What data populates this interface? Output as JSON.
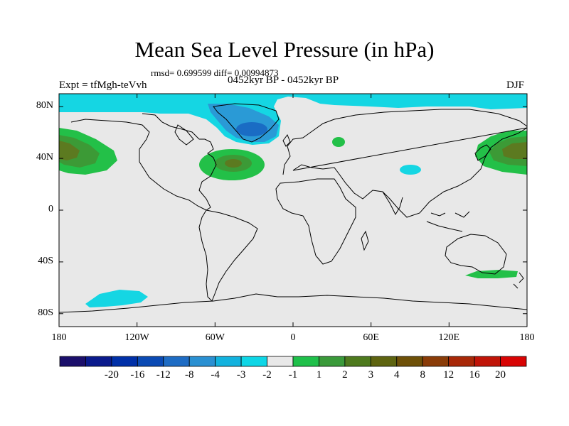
{
  "title": "Mean Sea Level Pressure (in hPa)",
  "stats": "rmsd= 0.699599 diff= 0.00994873",
  "subtitle": "0452kyr BP - 0452kyr BP",
  "experiment": "Expt = tfMgh-teVvh",
  "season": "DJF",
  "map": {
    "lon_range": [
      -180,
      180
    ],
    "lat_range": [
      -90,
      90
    ],
    "background_color": "#e8e8e8",
    "lat_ticks": [
      {
        "value": 80,
        "label": "80N"
      },
      {
        "value": 40,
        "label": "40N"
      },
      {
        "value": 0,
        "label": "0"
      },
      {
        "value": -40,
        "label": "40S"
      },
      {
        "value": -80,
        "label": "80S"
      }
    ],
    "lon_ticks": [
      {
        "value": -180,
        "label": "180"
      },
      {
        "value": -120,
        "label": "120W"
      },
      {
        "value": -60,
        "label": "60W"
      },
      {
        "value": 0,
        "label": "0"
      },
      {
        "value": 60,
        "label": "60E"
      },
      {
        "value": 120,
        "label": "120E"
      },
      {
        "value": 180,
        "label": "180"
      }
    ]
  },
  "colorbar": {
    "colors": [
      "#1b0f6b",
      "#0a1a8c",
      "#0030a8",
      "#0a4ab4",
      "#1e6cc4",
      "#2a90d2",
      "#12b2de",
      "#0ed6e6",
      "#e8e8e8",
      "#1fc04a",
      "#3a9a3a",
      "#4e7a1e",
      "#5e6410",
      "#6e5008",
      "#8a3c08",
      "#a82808",
      "#c01408",
      "#d80404"
    ],
    "labels": [
      "-20",
      "-16",
      "-12",
      "-8",
      "-4",
      "-3",
      "-2",
      "-1",
      "1",
      "2",
      "3",
      "4",
      "8",
      "12",
      "16",
      "20"
    ]
  },
  "colors": {
    "cyan": "#15d6e3",
    "blue_light": "#2a9ad6",
    "blue_mid": "#1a6cc4",
    "green": "#23c048",
    "green_dark": "#3c9a36",
    "olive": "#5c7a20",
    "olive_dark": "#6a5a18"
  }
}
